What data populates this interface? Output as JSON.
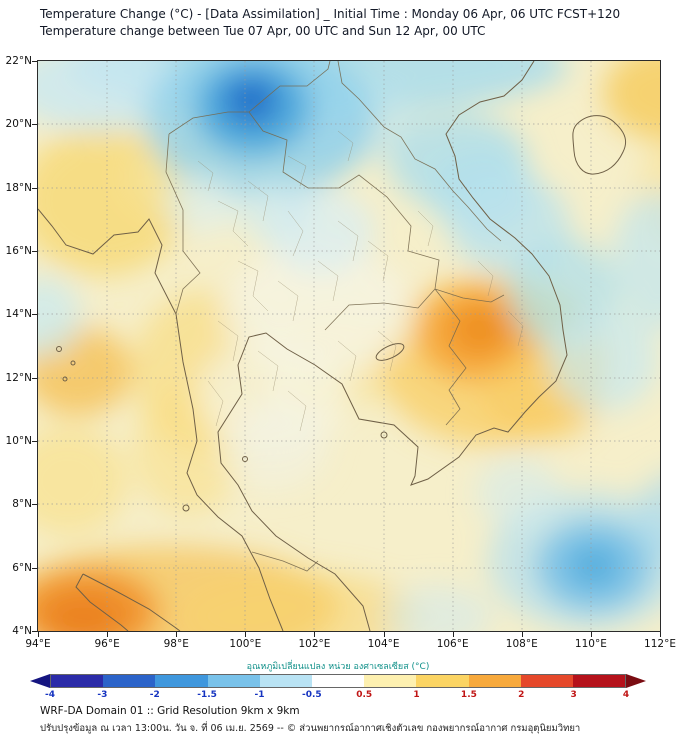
{
  "header": {
    "title_line1": "Temperature Change (°C) - [Data Assimilation] _ Initial Time : Monday 06 Apr, 06 UTC FCST+120",
    "title_line2": "Temperature change between Tue 07 Apr, 00 UTC and Sun 12 Apr, 00 UTC"
  },
  "map": {
    "lat_ticks": [
      "22°N",
      "20°N",
      "18°N",
      "16°N",
      "14°N",
      "12°N",
      "10°N",
      "8°N",
      "6°N",
      "4°N"
    ],
    "lon_ticks": [
      "94°E",
      "96°E",
      "98°E",
      "100°E",
      "102°E",
      "104°E",
      "106°E",
      "108°E",
      "110°E",
      "112°E"
    ]
  },
  "colorbar": {
    "label": "อุณหภูมิเปลี่ยนแปลง หน่วย องศาเซลเซียส (°C)",
    "ticks": [
      "-4",
      "-3",
      "-2",
      "-1.5",
      "-1",
      "-0.5",
      "0.5",
      "1",
      "1.5",
      "2",
      "3",
      "4"
    ],
    "segment_colors": [
      "#2b2ba8",
      "#2b63c9",
      "#3f97dd",
      "#79c2ea",
      "#b9e3f4",
      "#ffffff",
      "#fdf0b0",
      "#fbd463",
      "#f7a93c",
      "#e5482a",
      "#b5121b"
    ],
    "arrow_left_color": "#151580",
    "arrow_right_color": "#7a0c12",
    "negative_tick_color": "#1533c0",
    "positive_tick_color": "#c01515"
  },
  "footer": {
    "line1": "WRF-DA Domain 01 :: Grid Resolution 9km x 9km",
    "line2": "ปรับปรุงข้อมูล ณ เวลา 13:00น. วัน จ. ที่ 06 เม.ย. 2569 -- © ส่วนพยากรณ์อากาศเชิงตัวเลข กองพยากรณ์อากาศ กรมอุตุนิยมวิทยา"
  }
}
